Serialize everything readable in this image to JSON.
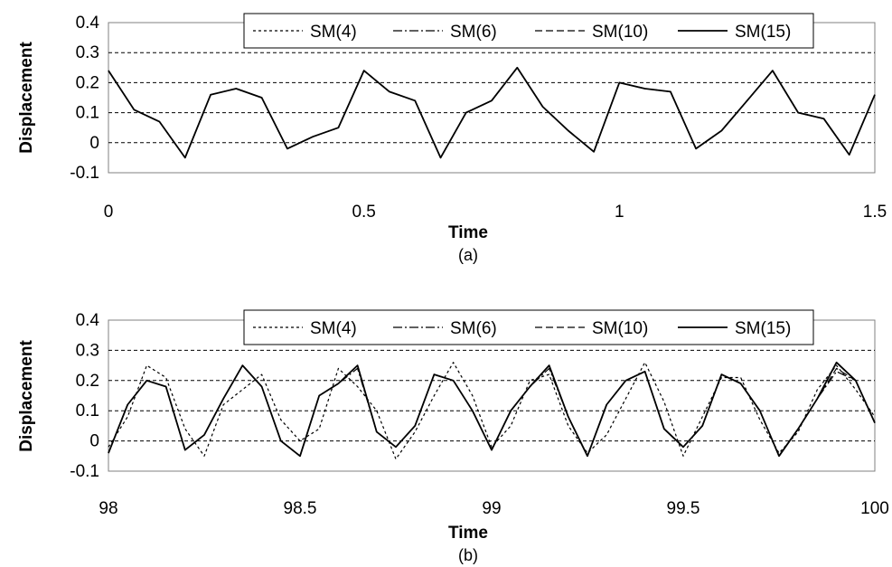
{
  "chart_data": [
    {
      "type": "line",
      "panel_label": "(a)",
      "xlabel": "Time",
      "ylabel": "Displacement",
      "xlim": [
        0,
        1.5
      ],
      "ylim": [
        -0.1,
        0.4
      ],
      "x_ticks": [
        "0",
        "0.5",
        "1",
        "1.5"
      ],
      "y_ticks": [
        "-0.1",
        "0",
        "0.1",
        "0.2",
        "0.3",
        "0.4"
      ],
      "grid": "horizontal dashed",
      "legend_position": "top",
      "x": [
        0,
        0.05,
        0.1,
        0.15,
        0.2,
        0.25,
        0.3,
        0.35,
        0.4,
        0.45,
        0.5,
        0.55,
        0.6,
        0.65,
        0.7,
        0.75,
        0.8,
        0.85,
        0.9,
        0.95,
        1.0,
        1.05,
        1.1,
        1.15,
        1.2,
        1.25,
        1.3,
        1.35,
        1.4,
        1.45,
        1.5
      ],
      "series": [
        {
          "name": "SM(4)",
          "dash": "3,3",
          "values": [
            0.24,
            0.11,
            0.07,
            -0.05,
            0.16,
            0.18,
            0.15,
            -0.02,
            0.02,
            0.05,
            0.24,
            0.17,
            0.14,
            -0.05,
            0.1,
            0.14,
            0.25,
            0.12,
            0.04,
            -0.03,
            0.2,
            0.18,
            0.17,
            -0.02,
            0.04,
            0.14,
            0.24,
            0.1,
            0.08,
            -0.04,
            0.16
          ]
        },
        {
          "name": "SM(6)",
          "dash": "10,3,2,3",
          "values": [
            0.24,
            0.11,
            0.07,
            -0.05,
            0.16,
            0.18,
            0.15,
            -0.02,
            0.02,
            0.05,
            0.24,
            0.17,
            0.14,
            -0.05,
            0.1,
            0.14,
            0.25,
            0.12,
            0.04,
            -0.03,
            0.2,
            0.18,
            0.17,
            -0.02,
            0.04,
            0.14,
            0.24,
            0.1,
            0.08,
            -0.04,
            0.16
          ]
        },
        {
          "name": "SM(10)",
          "dash": "8,4",
          "values": [
            0.24,
            0.11,
            0.07,
            -0.05,
            0.16,
            0.18,
            0.15,
            -0.02,
            0.02,
            0.05,
            0.24,
            0.17,
            0.14,
            -0.05,
            0.1,
            0.14,
            0.25,
            0.12,
            0.04,
            -0.03,
            0.2,
            0.18,
            0.17,
            -0.02,
            0.04,
            0.14,
            0.24,
            0.1,
            0.08,
            -0.04,
            0.16
          ]
        },
        {
          "name": "SM(15)",
          "dash": "",
          "values": [
            0.24,
            0.11,
            0.07,
            -0.05,
            0.16,
            0.18,
            0.15,
            -0.02,
            0.02,
            0.05,
            0.24,
            0.17,
            0.14,
            -0.05,
            0.1,
            0.14,
            0.25,
            0.12,
            0.04,
            -0.03,
            0.2,
            0.18,
            0.17,
            -0.02,
            0.04,
            0.14,
            0.24,
            0.1,
            0.08,
            -0.04,
            0.16
          ]
        }
      ]
    },
    {
      "type": "line",
      "panel_label": "(b)",
      "xlabel": "Time",
      "ylabel": "Displacement",
      "xlim": [
        98,
        100
      ],
      "ylim": [
        -0.1,
        0.4
      ],
      "x_ticks": [
        "98",
        "98.5",
        "99",
        "99.5",
        "100"
      ],
      "y_ticks": [
        "-0.1",
        "0",
        "0.1",
        "0.2",
        "0.3",
        "0.4"
      ],
      "grid": "horizontal dashed",
      "legend_position": "top",
      "x": [
        98.0,
        98.05,
        98.1,
        98.15,
        98.2,
        98.25,
        98.3,
        98.35,
        98.4,
        98.45,
        98.5,
        98.55,
        98.6,
        98.65,
        98.7,
        98.75,
        98.8,
        98.85,
        98.9,
        98.95,
        99.0,
        99.05,
        99.1,
        99.15,
        99.2,
        99.25,
        99.3,
        99.35,
        99.4,
        99.45,
        99.5,
        99.55,
        99.6,
        99.65,
        99.7,
        99.75,
        99.8,
        99.85,
        99.9,
        99.95,
        100.0
      ],
      "series": [
        {
          "name": "SM(4)",
          "dash": "3,3",
          "values": [
            -0.02,
            0.08,
            0.25,
            0.21,
            0.04,
            -0.05,
            0.12,
            0.17,
            0.22,
            0.07,
            0.0,
            0.04,
            0.24,
            0.18,
            0.1,
            -0.06,
            0.03,
            0.15,
            0.26,
            0.15,
            -0.02,
            0.05,
            0.2,
            0.22,
            0.05,
            -0.04,
            0.02,
            0.14,
            0.26,
            0.13,
            -0.05,
            0.08,
            0.21,
            0.21,
            0.07,
            -0.04,
            0.03,
            0.17,
            0.25,
            0.17,
            0.08
          ]
        },
        {
          "name": "SM(6)",
          "dash": "10,3,2,3",
          "values": [
            -0.04,
            0.12,
            0.2,
            0.18,
            -0.03,
            0.02,
            0.14,
            0.25,
            0.18,
            0.0,
            -0.05,
            0.15,
            0.19,
            0.24,
            0.03,
            -0.02,
            0.05,
            0.22,
            0.2,
            0.1,
            -0.03,
            0.1,
            0.18,
            0.24,
            0.08,
            -0.05,
            0.12,
            0.2,
            0.23,
            0.04,
            -0.02,
            0.05,
            0.22,
            0.19,
            0.1,
            -0.05,
            0.04,
            0.14,
            0.23,
            0.2,
            0.06
          ]
        },
        {
          "name": "SM(10)",
          "dash": "8,4",
          "values": [
            -0.04,
            0.12,
            0.2,
            0.18,
            -0.03,
            0.02,
            0.14,
            0.25,
            0.18,
            0.0,
            -0.05,
            0.15,
            0.19,
            0.25,
            0.03,
            -0.02,
            0.05,
            0.22,
            0.2,
            0.1,
            -0.03,
            0.1,
            0.18,
            0.25,
            0.08,
            -0.05,
            0.12,
            0.2,
            0.23,
            0.04,
            -0.02,
            0.05,
            0.22,
            0.19,
            0.1,
            -0.05,
            0.04,
            0.14,
            0.24,
            0.2,
            0.06
          ]
        },
        {
          "name": "SM(15)",
          "dash": "",
          "values": [
            -0.04,
            0.12,
            0.2,
            0.18,
            -0.03,
            0.02,
            0.14,
            0.25,
            0.18,
            0.0,
            -0.05,
            0.15,
            0.19,
            0.25,
            0.03,
            -0.02,
            0.05,
            0.22,
            0.2,
            0.1,
            -0.03,
            0.1,
            0.18,
            0.25,
            0.08,
            -0.05,
            0.12,
            0.2,
            0.23,
            0.04,
            -0.02,
            0.05,
            0.22,
            0.19,
            0.1,
            -0.05,
            0.04,
            0.14,
            0.26,
            0.2,
            0.06
          ]
        }
      ]
    }
  ]
}
